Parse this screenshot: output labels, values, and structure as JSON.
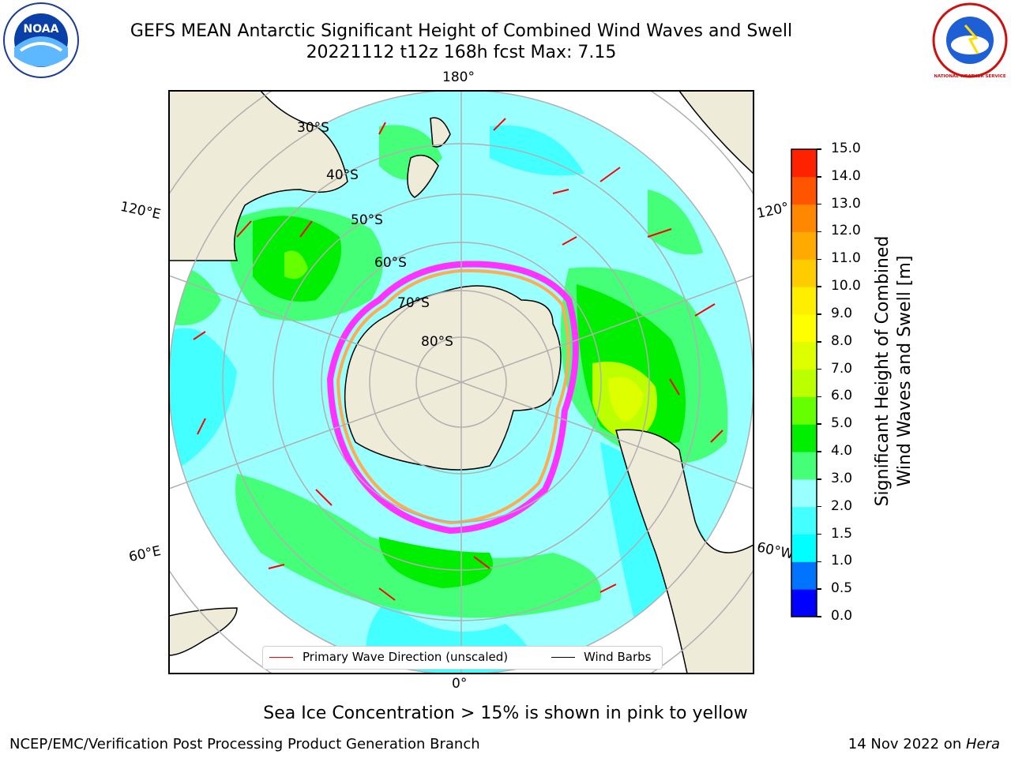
{
  "header": {
    "title_line1": "GEFS MEAN Antarctic Significant Height of Combined Wind Waves and Swell",
    "title_line2": "20221112 t12z 168h fcst   Max: 7.15"
  },
  "map": {
    "projection": "south-polar-stereographic",
    "lon_labels": {
      "top": "180°",
      "bottom": "0°",
      "left_upper": "120°E",
      "right_upper": "120°",
      "left_lower": "60°E",
      "right_lower": "60°W"
    },
    "lat_labels": [
      "30°S",
      "40°S",
      "50°S",
      "60°S",
      "70°S",
      "80°S"
    ],
    "land_color": "#efebd9",
    "sea_ice_colors": [
      "#ff33ff",
      "#ffaa55",
      "#ffee44"
    ]
  },
  "legend": {
    "wave_label": "Primary Wave Direction (unscaled)",
    "wind_label": "Wind Barbs",
    "wave_color": "#ff0000",
    "wind_color": "#000000"
  },
  "colorbar": {
    "label_line1": "Significant Height of Combined",
    "label_line2": "Wind Waves and Swell [m]",
    "ticks": [
      "0.0",
      "0.5",
      "1.0",
      "1.5",
      "2.0",
      "3.0",
      "4.0",
      "5.0",
      "6.0",
      "7.0",
      "8.0",
      "9.0",
      "10.0",
      "11.0",
      "12.0",
      "13.0",
      "14.0",
      "15.0"
    ],
    "colors": [
      "#0000ff",
      "#0073ff",
      "#00ffff",
      "#44ffff",
      "#99ffff",
      "#44ff77",
      "#00ee00",
      "#66ff00",
      "#bbff00",
      "#ddff00",
      "#ffff00",
      "#ffee00",
      "#ffcc00",
      "#ffaa00",
      "#ff8800",
      "#ff5500",
      "#ff2200"
    ]
  },
  "footer": {
    "sea_ice_note": "Sea Ice Concentration > 15% is shown in pink to yellow",
    "credit": "NCEP/EMC/Verification Post Processing Product Generation Branch",
    "stamp_date": "14 Nov 2022 on ",
    "stamp_host": "Hera"
  },
  "logos": {
    "left": "NOAA",
    "right": "NATIONAL WEATHER SERVICE"
  }
}
